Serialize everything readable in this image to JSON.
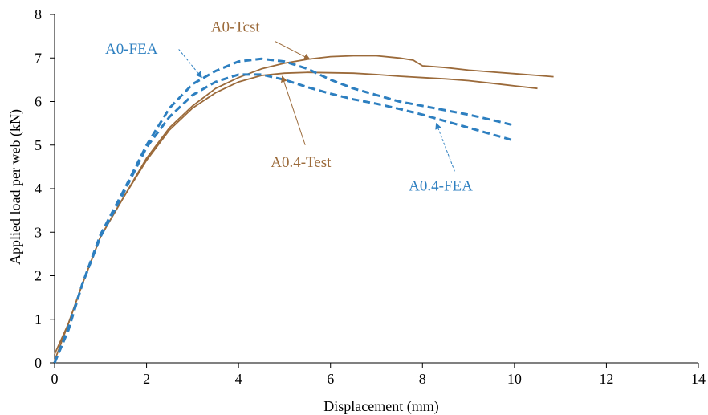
{
  "chart_data": {
    "type": "line",
    "title": "",
    "xlabel": "Displacement (mm)",
    "ylabel": "Applied load per web (kN)",
    "xlim": [
      0,
      14
    ],
    "ylim": [
      0,
      8
    ],
    "xticks": [
      "0",
      "2",
      "4",
      "6",
      "8",
      "10",
      "12",
      "14"
    ],
    "yticks": [
      "0",
      "1",
      "2",
      "3",
      "4",
      "5",
      "6",
      "7",
      "8"
    ],
    "grid": false,
    "legend": "none",
    "colors": {
      "test": "#9b6a3a",
      "fea": "#2d7fc0"
    },
    "series": [
      {
        "name": "A0-Tcst",
        "style": "solid",
        "color": "#9b6a3a",
        "x": [
          0,
          0.3,
          0.6,
          1.0,
          1.5,
          2.0,
          2.5,
          3.0,
          3.5,
          4.0,
          4.5,
          5.0,
          5.5,
          6.0,
          6.5,
          7.0,
          7.5,
          7.8,
          8.0,
          8.5,
          9.0,
          9.5,
          10.0,
          10.5,
          10.85
        ],
        "y": [
          0.2,
          0.9,
          1.8,
          2.9,
          3.8,
          4.7,
          5.4,
          5.9,
          6.3,
          6.55,
          6.75,
          6.88,
          6.97,
          7.03,
          7.05,
          7.05,
          7.0,
          6.95,
          6.82,
          6.78,
          6.72,
          6.68,
          6.64,
          6.6,
          6.57
        ]
      },
      {
        "name": "A0.4-Test",
        "style": "solid",
        "color": "#9b6a3a",
        "x": [
          0,
          0.3,
          0.6,
          1.0,
          1.5,
          2.0,
          2.5,
          3.0,
          3.5,
          4.0,
          4.5,
          5.0,
          5.5,
          6.0,
          6.5,
          7.0,
          7.5,
          8.0,
          8.5,
          9.0,
          9.5,
          10.0,
          10.5
        ],
        "y": [
          0.05,
          0.9,
          1.8,
          2.9,
          3.8,
          4.65,
          5.35,
          5.85,
          6.2,
          6.45,
          6.6,
          6.65,
          6.67,
          6.66,
          6.65,
          6.62,
          6.58,
          6.55,
          6.52,
          6.48,
          6.42,
          6.36,
          6.3
        ]
      },
      {
        "name": "A0-FEA",
        "style": "dashed",
        "color": "#2d7fc0",
        "x": [
          0,
          0.3,
          0.6,
          1.0,
          1.5,
          2.0,
          2.5,
          3.0,
          3.5,
          4.0,
          4.5,
          5.0,
          5.5,
          6.0,
          6.5,
          7.0,
          7.5,
          8.0,
          8.5,
          9.0,
          9.5,
          10.0
        ],
        "y": [
          0,
          0.8,
          1.8,
          2.95,
          3.95,
          5.0,
          5.85,
          6.4,
          6.7,
          6.92,
          6.98,
          6.92,
          6.75,
          6.5,
          6.3,
          6.15,
          6.0,
          5.9,
          5.8,
          5.7,
          5.58,
          5.45
        ]
      },
      {
        "name": "A0.4-FEA",
        "style": "dashed",
        "color": "#2d7fc0",
        "x": [
          0,
          0.3,
          0.6,
          1.0,
          1.5,
          2.0,
          2.5,
          3.0,
          3.5,
          4.0,
          4.5,
          5.0,
          5.5,
          6.0,
          6.5,
          7.0,
          7.5,
          8.0,
          8.5,
          9.0,
          9.5,
          10.0
        ],
        "y": [
          0,
          0.75,
          1.8,
          2.9,
          3.9,
          4.95,
          5.65,
          6.15,
          6.45,
          6.62,
          6.62,
          6.5,
          6.33,
          6.18,
          6.05,
          5.95,
          5.83,
          5.7,
          5.55,
          5.4,
          5.25,
          5.1
        ]
      }
    ],
    "annotations": [
      {
        "text": "A0-Tcst",
        "series": "A0-Tcst",
        "color": "#9b6a3a",
        "label_at": [
          3.4,
          7.6
        ],
        "arrow_from": [
          4.8,
          7.38
        ],
        "arrow_to": [
          5.55,
          6.97
        ],
        "dashed": false
      },
      {
        "text": "A0-FEA",
        "series": "A0-FEA",
        "color": "#2d7fc0",
        "label_at": [
          1.1,
          7.1
        ],
        "arrow_from": [
          2.7,
          7.2
        ],
        "arrow_to": [
          3.2,
          6.55
        ],
        "dashed": true
      },
      {
        "text": "A0.4-Test",
        "series": "A0.4-Test",
        "color": "#9b6a3a",
        "label_at": [
          4.7,
          4.5
        ],
        "arrow_from": [
          5.45,
          5.0
        ],
        "arrow_to": [
          4.95,
          6.58
        ],
        "dashed": false
      },
      {
        "text": "A0.4-FEA",
        "series": "A0.4-FEA",
        "color": "#2d7fc0",
        "label_at": [
          7.7,
          3.95
        ],
        "arrow_from": [
          8.7,
          4.4
        ],
        "arrow_to": [
          8.3,
          5.5
        ],
        "dashed": true
      }
    ]
  }
}
